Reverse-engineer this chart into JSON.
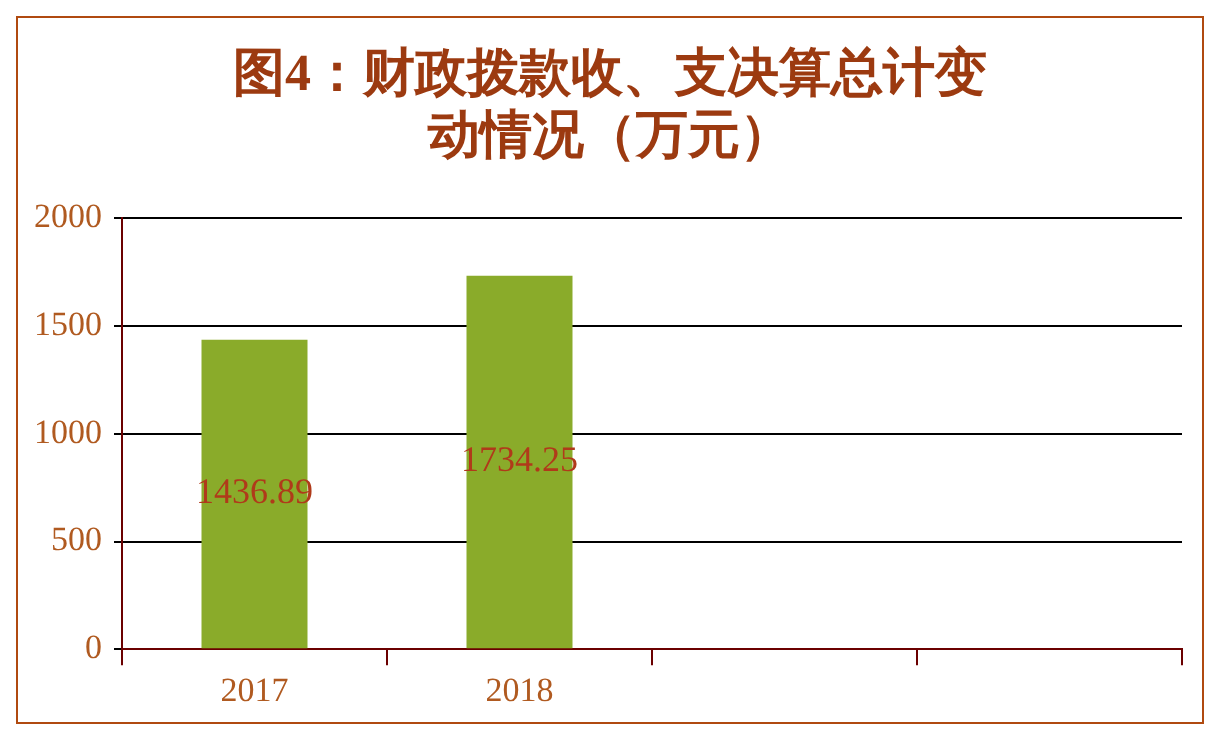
{
  "chart_data": {
    "type": "bar",
    "title": "图4：财政拨款收、支决算总计变动情况（万元）",
    "categories": [
      "2017",
      "2018",
      null,
      null
    ],
    "values": [
      1436.89,
      1734.25,
      null,
      null
    ],
    "color": "#8aab2a",
    "ylim": [
      0,
      2000
    ],
    "yticks": [
      0,
      500,
      1000,
      1500,
      2000
    ],
    "grid": "y",
    "legend": false,
    "data_labels": true
  }
}
